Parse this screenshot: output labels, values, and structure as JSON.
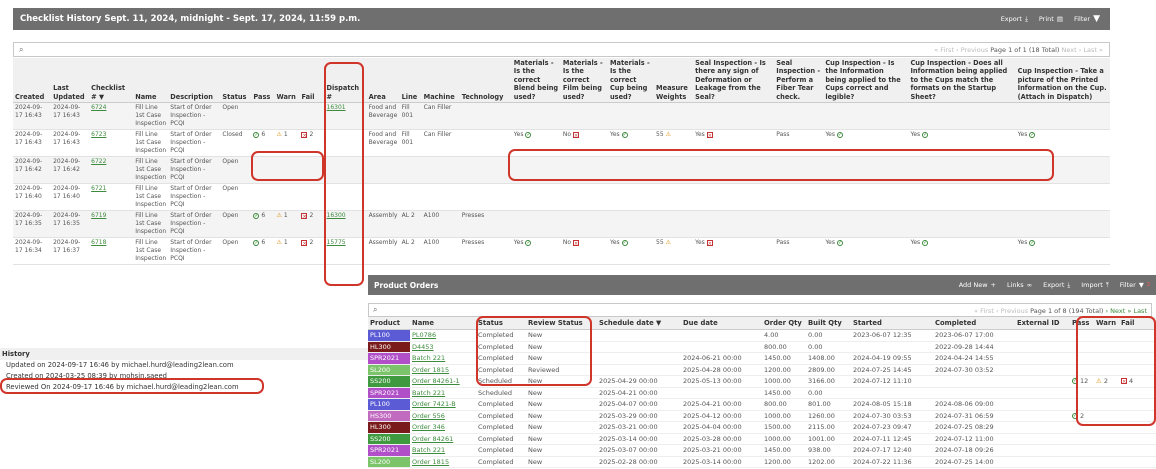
{
  "header": {
    "title": "Checklist History Sept. 11, 2024, midnight - Sept. 17, 2024, 11:59 p.m.",
    "export": "Export",
    "print": "Print",
    "filter": "Filter"
  },
  "search": {
    "icon": "search-icon",
    "pager": {
      "first": "« First",
      "prev": "‹ Previous",
      "page": "Page 1 of 1 (18 Total)",
      "next": "Next ›",
      "last": "Last »"
    }
  },
  "columns": [
    "Created",
    "Last Updated",
    "Checklist # ▼",
    "Name",
    "Description",
    "Status",
    "Pass",
    "Warn",
    "Fail",
    "Dispatch #",
    "Area",
    "Line",
    "Machine",
    "Technology",
    "Materials - Is the correct Blend being used?",
    "Materials - Is the correct Film being used?",
    "Materials - Is the correct Cup being used?",
    "Measure Weights",
    "Seal Inspection - Is there any sign of Deformation or Leakage from the Seal?",
    "Seal Inspection - Perform a Fiber Tear check.",
    "Cup Inspection - Is the Information being applied to the Cups correct and legible?",
    "Cup Inspection - Does all Information being applied to the Cups match the formats on the Startup Sheet?",
    "Cup Inspection - Take a picture of the Printed Information on the Cup. (Attach in Dispatch)"
  ],
  "rows": [
    {
      "created": "2024-09-17 16:43",
      "updated": "2024-09-17 16:43",
      "num": "6724",
      "name": "Fill Line 1st Case Inspection",
      "desc": "Start of Order Inspection - PCQI",
      "status": "Open",
      "pass": "",
      "warn": "",
      "fail": "",
      "dispatch": "16301",
      "area": "Food and Beverage",
      "line": "Fill 001",
      "machine": "Can Filler",
      "tech": "",
      "blend": "",
      "film": "",
      "cup": "",
      "weights": "",
      "seal": "",
      "fiber": "",
      "cupinfo": "",
      "cupmatch": "",
      "cuppic": ""
    },
    {
      "created": "2024-09-17 16:43",
      "updated": "2024-09-17 16:43",
      "num": "6723",
      "name": "Fill Line 1st Case Inspection",
      "desc": "Start of Order Inspection - PCQI",
      "status": "Closed",
      "pass": "6",
      "warn": "1",
      "fail": "2",
      "dispatch": "",
      "area": "Food and Beverage",
      "line": "Fill 001",
      "machine": "Can Filler",
      "tech": "",
      "blend": "Yes",
      "film": "No",
      "cup": "Yes",
      "weights": "55",
      "seal": "Yes",
      "fiber": "Pass",
      "cupinfo": "Yes",
      "cupmatch": "Yes",
      "cuppic": "Yes"
    },
    {
      "created": "2024-09-17 16:42",
      "updated": "2024-09-17 16:42",
      "num": "6722",
      "name": "Fill Line 1st Case Inspection",
      "desc": "Start of Order Inspection - PCQI",
      "status": "Open",
      "pass": "",
      "warn": "",
      "fail": "",
      "dispatch": "",
      "area": "",
      "line": "",
      "machine": "",
      "tech": "",
      "blend": "",
      "film": "",
      "cup": "",
      "weights": "",
      "seal": "",
      "fiber": "",
      "cupinfo": "",
      "cupmatch": "",
      "cuppic": ""
    },
    {
      "created": "2024-09-17 16:40",
      "updated": "2024-09-17 16:40",
      "num": "6721",
      "name": "Fill Line 1st Case Inspection",
      "desc": "Start of Order Inspection - PCQI",
      "status": "Open",
      "pass": "",
      "warn": "",
      "fail": "",
      "dispatch": "",
      "area": "",
      "line": "",
      "machine": "",
      "tech": "",
      "blend": "",
      "film": "",
      "cup": "",
      "weights": "",
      "seal": "",
      "fiber": "",
      "cupinfo": "",
      "cupmatch": "",
      "cuppic": ""
    },
    {
      "created": "2024-09-17 16:35",
      "updated": "2024-09-17 16:35",
      "num": "6719",
      "name": "Fill Line 1st Case Inspection",
      "desc": "Start of Order Inspection - PCQI",
      "status": "Open",
      "pass": "6",
      "warn": "1",
      "fail": "2",
      "dispatch": "16300",
      "area": "Assembly",
      "line": "AL 2",
      "machine": "A100",
      "tech": "Presses",
      "blend": "",
      "film": "",
      "cup": "",
      "weights": "",
      "seal": "",
      "fiber": "",
      "cupinfo": "",
      "cupmatch": "",
      "cuppic": ""
    },
    {
      "created": "2024-09-17 16:34",
      "updated": "2024-09-17 16:37",
      "num": "6718",
      "name": "Fill Line 1st Case Inspection",
      "desc": "Start of Order Inspection - PCQI",
      "status": "Open",
      "pass": "6",
      "warn": "1",
      "fail": "2",
      "dispatch": "15775",
      "area": "Assembly",
      "line": "AL 2",
      "machine": "A100",
      "tech": "Presses",
      "blend": "Yes",
      "film": "No",
      "cup": "Yes",
      "weights": "55",
      "seal": "Yes",
      "fiber": "Pass",
      "cupinfo": "Yes",
      "cupmatch": "Yes",
      "cuppic": "Yes"
    }
  ],
  "history": {
    "title": "History",
    "updated": "Updated on 2024-09-17 16:46 by michael.hurd@leading2lean.com",
    "created": "Created on 2024-03-25 08:39 by mohsin.saeed",
    "reviewed": "Reviewed On 2024-09-17 16:46 by michael.hurd@leading2lean.com"
  },
  "product_orders": {
    "title": "Product Orders",
    "add_new": "Add New",
    "links": "Links",
    "export": "Export",
    "import": "Import",
    "filter": "Filter",
    "filter_count": "2",
    "pager": {
      "first": "« First",
      "prev": "‹ Previous",
      "page": "Page 1 of 8 (194 Total)",
      "next": "› Next",
      "last": "» Last"
    },
    "columns": [
      "Product",
      "Name",
      "Status",
      "Review Status",
      "Schedule date ▼",
      "Due date",
      "Order Qty",
      "Built Qty",
      "Started",
      "Completed",
      "External ID",
      "Pass",
      "Warn",
      "Fail"
    ],
    "rows": [
      {
        "product": "PL100",
        "color": "#5b5bd6",
        "name": "PL0786",
        "status": "Completed",
        "review": "New",
        "sched": "",
        "due": "",
        "qty": "4.00",
        "built": "0.00",
        "started": "2023-06-07 12:35",
        "completed": "2023-06-07 17:00",
        "pass": "",
        "warn": "",
        "fail": ""
      },
      {
        "product": "HL300",
        "color": "#7a1a1a",
        "name": "D4453",
        "status": "Completed",
        "review": "New",
        "sched": "",
        "due": "",
        "qty": "800.00",
        "built": "0.00",
        "started": "",
        "completed": "2022-09-28 14:44",
        "pass": "",
        "warn": "",
        "fail": ""
      },
      {
        "product": "SPR2021",
        "color": "#b04fc8",
        "name": "Batch 221",
        "status": "Completed",
        "review": "New",
        "sched": "",
        "due": "2024-06-21 00:00",
        "qty": "1450.00",
        "built": "1408.00",
        "started": "2024-04-19 09:55",
        "completed": "2024-04-24 14:55",
        "pass": "",
        "warn": "",
        "fail": ""
      },
      {
        "product": "SL200",
        "color": "#7cc46a",
        "name": "Order 1815",
        "status": "Completed",
        "review": "Reviewed",
        "sched": "",
        "due": "2025-04-28 00:00",
        "qty": "1200.00",
        "built": "2809.00",
        "started": "2024-07-25 14:45",
        "completed": "2024-07-30 03:52",
        "pass": "",
        "warn": "",
        "fail": ""
      },
      {
        "product": "SS200",
        "color": "#3f9a3f",
        "name": "Order 84261-1",
        "status": "Scheduled",
        "review": "New",
        "sched": "2025-04-29 00:00",
        "due": "2025-05-13 00:00",
        "qty": "1000.00",
        "built": "3166.00",
        "started": "2024-07-12 11:10",
        "completed": "",
        "pass": "12",
        "warn": "2",
        "fail": "4"
      },
      {
        "product": "SPR2021",
        "color": "#b04fc8",
        "name": "Batch 221",
        "status": "Scheduled",
        "review": "New",
        "sched": "2025-04-21 00:00",
        "due": "",
        "qty": "1450.00",
        "built": "0.00",
        "started": "",
        "completed": "",
        "pass": "",
        "warn": "",
        "fail": ""
      },
      {
        "product": "PL100",
        "color": "#5b5bd6",
        "name": "Order 7421-B",
        "status": "Completed",
        "review": "New",
        "sched": "2025-04-07 00:00",
        "due": "2025-04-21 00:00",
        "qty": "800.00",
        "built": "801.00",
        "started": "2024-08-05 15:18",
        "completed": "2024-08-06 09:00",
        "pass": "",
        "warn": "",
        "fail": ""
      },
      {
        "product": "HS300",
        "color": "#c06ac0",
        "name": "Order 556",
        "status": "Completed",
        "review": "New",
        "sched": "2025-03-29 00:00",
        "due": "2025-04-12 00:00",
        "qty": "1000.00",
        "built": "1260.00",
        "started": "2024-07-30 03:53",
        "completed": "2024-07-31 06:59",
        "pass": "2",
        "warn": "",
        "fail": ""
      },
      {
        "product": "HL300",
        "color": "#7a1a1a",
        "name": "Order 346",
        "status": "Completed",
        "review": "New",
        "sched": "2025-03-21 00:00",
        "due": "2025-04-04 00:00",
        "qty": "1500.00",
        "built": "2115.00",
        "started": "2024-07-23 09:47",
        "completed": "2024-07-25 08:29",
        "pass": "",
        "warn": "",
        "fail": ""
      },
      {
        "product": "SS200",
        "color": "#3f9a3f",
        "name": "Order 84261",
        "status": "Completed",
        "review": "New",
        "sched": "2025-03-14 00:00",
        "due": "2025-03-28 00:00",
        "qty": "1000.00",
        "built": "1001.00",
        "started": "2024-07-11 12:45",
        "completed": "2024-07-12 11:00",
        "pass": "",
        "warn": "",
        "fail": ""
      },
      {
        "product": "SPR2021",
        "color": "#b04fc8",
        "name": "Batch 221",
        "status": "Completed",
        "review": "New",
        "sched": "2025-03-07 00:00",
        "due": "2025-03-21 00:00",
        "qty": "1450.00",
        "built": "938.00",
        "started": "2024-07-17 12:40",
        "completed": "2024-07-18 09:26",
        "pass": "",
        "warn": "",
        "fail": ""
      },
      {
        "product": "SL200",
        "color": "#7cc46a",
        "name": "Order 1815",
        "status": "Completed",
        "review": "New",
        "sched": "2025-02-28 00:00",
        "due": "2025-03-14 00:00",
        "qty": "1200.00",
        "built": "1202.00",
        "started": "2024-07-22 11:36",
        "completed": "2024-07-25 14:00",
        "pass": "",
        "warn": "",
        "fail": ""
      }
    ]
  }
}
